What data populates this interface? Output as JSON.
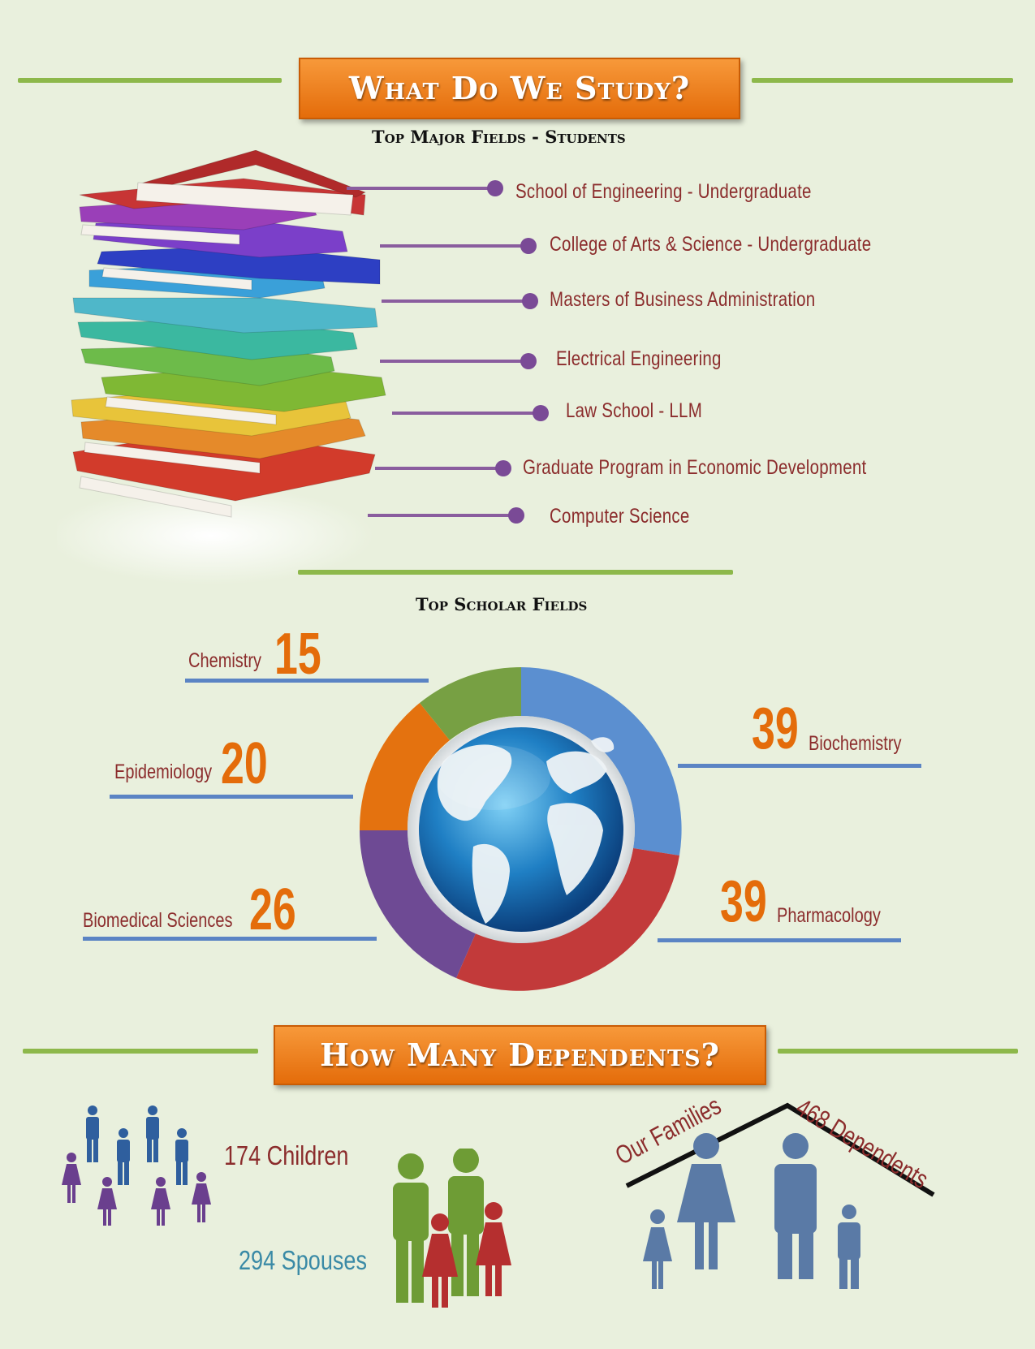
{
  "study": {
    "title": "What Do We Study?",
    "students_heading": "Top Major Fields - Students",
    "fields": [
      "School of Engineering - Undergraduate",
      "College of Arts & Science - Undergraduate",
      "Masters of Business Administration",
      "Electrical Engineering",
      "Law School - LLM",
      "Graduate Program in Economic Development",
      "Computer Science"
    ],
    "scholars_heading": "Top Scholar Fields",
    "scholars": [
      {
        "name": "Chemistry",
        "count": "15",
        "color": "#77a043"
      },
      {
        "name": "Biochemistry",
        "count": "39",
        "color": "#5b8fd0"
      },
      {
        "name": "Epidemiology",
        "count": "20",
        "color": "#e4720f"
      },
      {
        "name": "Pharmacology",
        "count": "39",
        "color": "#c23a3a"
      },
      {
        "name": "Biomedical Sciences",
        "count": "26",
        "color": "#6e4a94"
      }
    ]
  },
  "dependents": {
    "title": "How Many Dependents?",
    "children": "174 Children",
    "spouses": "294 Spouses",
    "families_label": "Our Families",
    "dependents_label": "468 Dependents"
  },
  "colors": {
    "background": "#e9f0dd",
    "banner": "#e46c0a",
    "accent_green": "#8db84a",
    "field_text": "#8b2c2c",
    "scholar_line": "#5b84c4",
    "number_orange": "#e46c0a",
    "spouses_text": "#3a8aa6"
  },
  "icons": {
    "books": "stack-of-books-icon",
    "globe": "world-globe-icon",
    "children": "children-figures-icon",
    "spouses": "couple-figures-icon",
    "family": "family-house-icon"
  }
}
